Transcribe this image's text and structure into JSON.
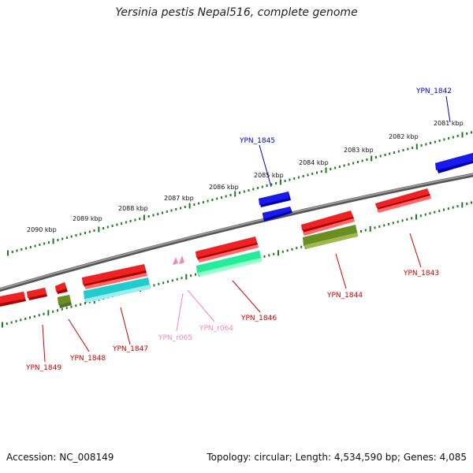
{
  "title": "Yersinia pestis Nepal516, complete genome",
  "footer": {
    "accession": "Accession: NC_008149",
    "summary": "Topology: circular; Length: 4,534,590 bp; Genes: 4,085"
  },
  "colors": {
    "backbone": "#808080",
    "tick": "#1f7a1f",
    "cds_red": "#ee1111",
    "cds_blue": "#1111dd",
    "cds_cyan": "#22cccc",
    "cds_olive": "#6b8e23",
    "cds_green": "#22ee99",
    "rna_pink": "#ee88bb",
    "label_red": "#cc0000",
    "label_blue": "#0000cc",
    "label_pink": "#ee88bb"
  },
  "scale_labels": [
    "2090 kbp",
    "2089 kbp",
    "2088 kbp",
    "2087 kbp",
    "2086 kbp",
    "2085 kbp",
    "2084 kbp",
    "2083 kbp",
    "2082 kbp",
    "2081 kbp"
  ],
  "gene_labels": {
    "ypn_1842": "YPN_1842",
    "ypn_1843": "YPN_1843",
    "ypn_1844": "YPN_1844",
    "ypn_1845": "YPN_1845",
    "ypn_1846": "YPN_1846",
    "ypn_1847": "YPN_1847",
    "ypn_1848": "YPN_1848",
    "ypn_1849": "YPN_1849",
    "ypn_r064": "YPN_r064",
    "ypn_r065": "YPN_r065"
  }
}
